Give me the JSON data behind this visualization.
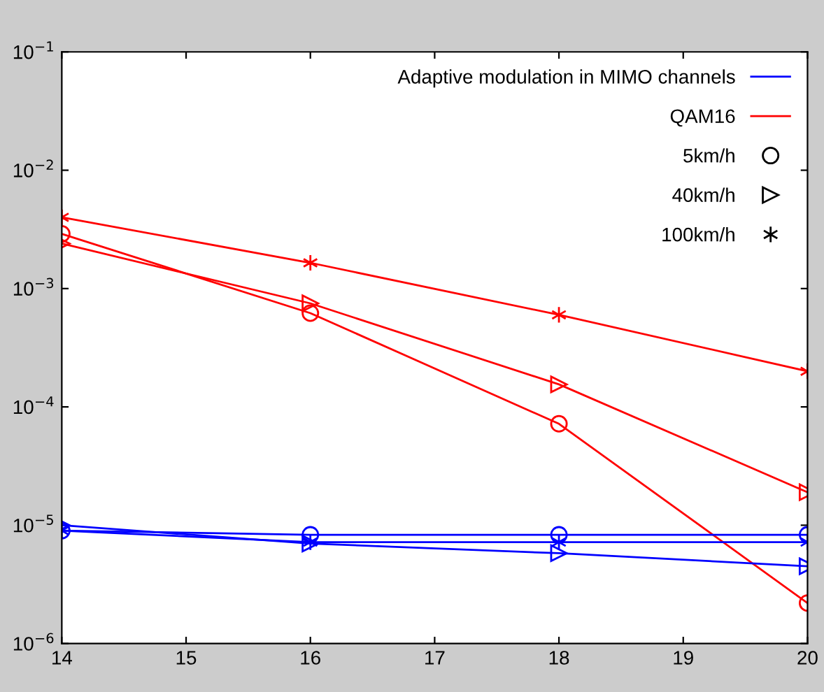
{
  "chart_data": {
    "type": "line",
    "x": [
      14,
      16,
      18,
      20
    ],
    "series": [
      {
        "color": "#ff0000",
        "marker": "circle",
        "values": [
          0.0029,
          0.00062,
          7.2e-05,
          2.2e-06
        ]
      },
      {
        "color": "#ff0000",
        "marker": "triangle",
        "values": [
          0.0024,
          0.00075,
          0.000155,
          1.9e-05
        ]
      },
      {
        "color": "#ff0000",
        "marker": "cross",
        "values": [
          0.004,
          0.00165,
          0.0006,
          0.0002
        ]
      },
      {
        "color": "#0000ff",
        "marker": "circle",
        "values": [
          9e-06,
          8.3e-06,
          8.3e-06,
          8.3e-06
        ]
      },
      {
        "color": "#0000ff",
        "marker": "triangle",
        "values": [
          1e-05,
          7e-06,
          5.8e-06,
          4.5e-06
        ]
      },
      {
        "color": "#0000ff",
        "marker": "cross",
        "values": [
          9e-06,
          7.2e-06,
          7.2e-06,
          7.2e-06
        ]
      }
    ],
    "annotations": [
      "Adaptive modulation in MIMO channels",
      "QAM16",
      "5km/h",
      "40km/h",
      "100km/h"
    ],
    "log": "y",
    "xlim": [
      14,
      20
    ],
    "ylim": [
      1e-06,
      0.1
    ],
    "xticks": [
      14,
      15,
      16,
      17,
      18,
      19,
      20
    ],
    "yticks": [
      {
        "value": 1e-06,
        "label": "10$^{−6}$"
      },
      {
        "value": 1e-05,
        "label": "10$^{−5}$"
      },
      {
        "value": 0.0001,
        "label": "10$^{−4}$"
      },
      {
        "value": 0.001,
        "label": "10$^{−3}$"
      },
      {
        "value": 0.01,
        "label": "10$^{−2}$"
      },
      {
        "value": 0.1,
        "label": "10$^{−1}$"
      }
    ],
    "grid": false,
    "line_style": "solid"
  }
}
